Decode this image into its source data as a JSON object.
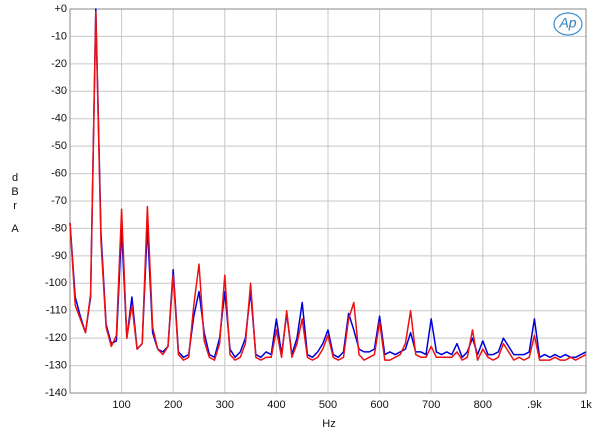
{
  "chart_data": {
    "type": "line",
    "logo": "Ap",
    "ylabel": "dBr",
    "ylabel_unit": "A",
    "xlabel": "Hz",
    "x": [
      0,
      10,
      20,
      30,
      40,
      50,
      60,
      70,
      80,
      90,
      100,
      110,
      120,
      130,
      140,
      150,
      160,
      170,
      180,
      190,
      200,
      210,
      220,
      230,
      240,
      250,
      260,
      270,
      280,
      290,
      300,
      310,
      320,
      330,
      340,
      350,
      360,
      370,
      380,
      390,
      400,
      410,
      420,
      430,
      440,
      450,
      460,
      470,
      480,
      490,
      500,
      510,
      520,
      530,
      540,
      550,
      560,
      570,
      580,
      590,
      600,
      610,
      620,
      630,
      640,
      650,
      660,
      670,
      680,
      690,
      700,
      710,
      720,
      730,
      740,
      750,
      760,
      770,
      780,
      790,
      800,
      810,
      820,
      830,
      840,
      850,
      860,
      870,
      880,
      890,
      900,
      910,
      920,
      930,
      940,
      950,
      960,
      970,
      980,
      990,
      1000
    ],
    "series": [
      {
        "color": "#0000dd",
        "values": [
          -78,
          -105,
          -112,
          -118,
          -105,
          0,
          -82,
          -115,
          -122,
          -121,
          -80,
          -120,
          -105,
          -124,
          -122,
          -79,
          -118,
          -124,
          -125,
          -123,
          -95,
          -125,
          -127,
          -126,
          -112,
          -103,
          -118,
          -126,
          -127,
          -120,
          -103,
          -124,
          -127,
          -125,
          -120,
          -103,
          -126,
          -127,
          -125,
          -126,
          -113,
          -126,
          -111,
          -126,
          -120,
          -107,
          -126,
          -127,
          -125,
          -122,
          -117,
          -126,
          -127,
          -125,
          -111,
          -117,
          -124,
          -125,
          -125,
          -124,
          -112,
          -126,
          -125,
          -126,
          -125,
          -124,
          -118,
          -125,
          -125,
          -126,
          -113,
          -125,
          -126,
          -125,
          -126,
          -122,
          -127,
          -125,
          -120,
          -126,
          -121,
          -126,
          -126,
          -125,
          -120,
          -123,
          -126,
          -126,
          -126,
          -125,
          -113,
          -127,
          -126,
          -127,
          -126,
          -127,
          -126,
          -127,
          -127,
          -126,
          -125
        ]
      },
      {
        "color": "#ee1111",
        "values": [
          -78,
          -108,
          -113,
          -118,
          -104,
          -1,
          -85,
          -116,
          -123,
          -119,
          -73,
          -120,
          -108,
          -124,
          -122,
          -72,
          -116,
          -124,
          -126,
          -123,
          -97,
          -126,
          -128,
          -127,
          -108,
          -93,
          -121,
          -127,
          -128,
          -122,
          -97,
          -126,
          -128,
          -127,
          -122,
          -100,
          -127,
          -128,
          -127,
          -127,
          -117,
          -127,
          -110,
          -127,
          -122,
          -113,
          -127,
          -128,
          -127,
          -124,
          -119,
          -127,
          -128,
          -127,
          -113,
          -107,
          -126,
          -128,
          -127,
          -126,
          -114,
          -128,
          -128,
          -127,
          -126,
          -122,
          -110,
          -126,
          -127,
          -127,
          -123,
          -127,
          -127,
          -127,
          -127,
          -125,
          -128,
          -127,
          -117,
          -128,
          -124,
          -127,
          -128,
          -127,
          -122,
          -125,
          -128,
          -127,
          -128,
          -127,
          -119,
          -128,
          -128,
          -128,
          -127,
          -128,
          -128,
          -127,
          -128,
          -127,
          -126
        ]
      }
    ],
    "xlim": [
      0,
      1000
    ],
    "xticks": [
      100,
      200,
      300,
      400,
      500,
      600,
      700,
      800,
      {
        "value": 900,
        "label": ".9k"
      },
      {
        "value": 1000,
        "label": "1k"
      }
    ],
    "ylim": [
      -140,
      0
    ],
    "yticks": [
      {
        "value": 0,
        "label": "+0"
      },
      -10,
      -20,
      -30,
      -40,
      -50,
      -60,
      -70,
      -80,
      -90,
      -100,
      -110,
      -120,
      -130,
      -140
    ],
    "grid": true
  }
}
